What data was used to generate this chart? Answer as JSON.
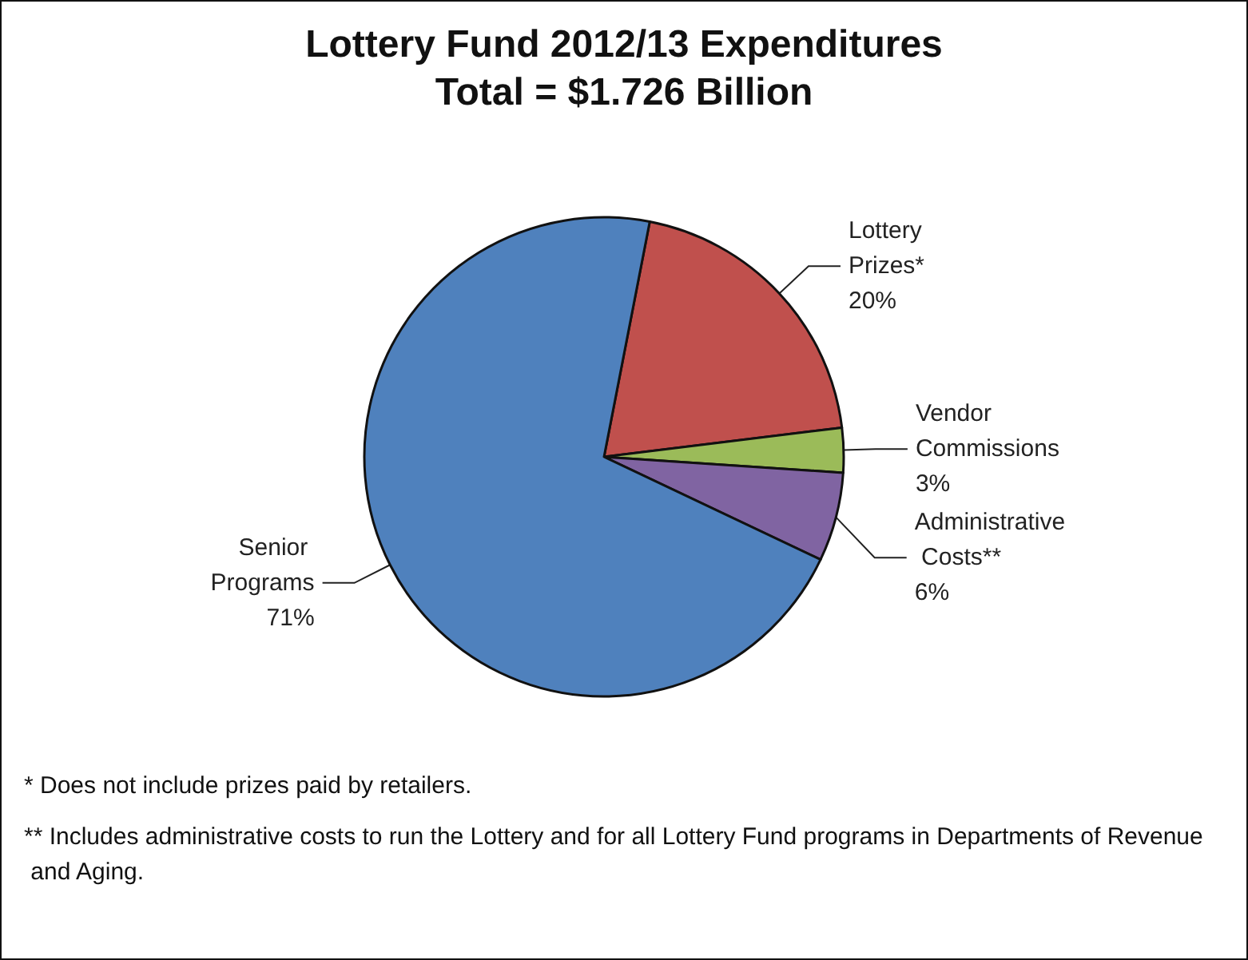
{
  "chart_data": {
    "type": "pie",
    "title": "Lottery Fund 2012/13 Expenditures",
    "subtitle": "Total = $1.726 Billion",
    "categories": [
      "Lottery Prizes*",
      "Vendor Commissions",
      "Administrative Costs**",
      "Senior Programs"
    ],
    "values": [
      20,
      3,
      6,
      71
    ],
    "colors": [
      "#c0504d",
      "#9bbb59",
      "#8064a2",
      "#4f81bd"
    ],
    "legend": false,
    "value_labels": [
      "20%",
      "3%",
      "6%",
      "71%"
    ],
    "annotations": [
      "* Does not include prizes paid by retailers.",
      "** Includes administrative costs to run the Lottery and for all Lottery Fund programs in Departments of Revenue and Aging."
    ]
  }
}
